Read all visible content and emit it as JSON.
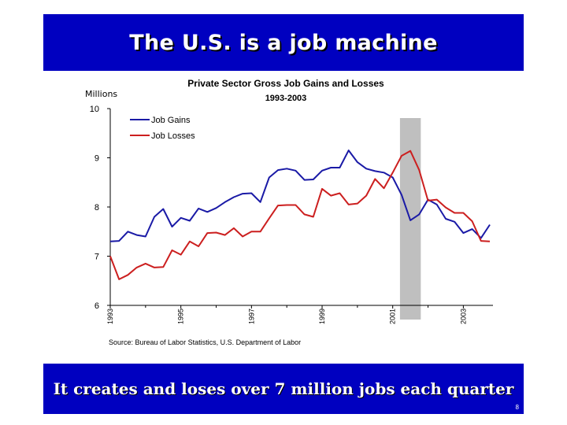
{
  "slide": {
    "title": "The U.S. is a job machine",
    "subtitle": "It creates and loses over 7 million jobs each quarter",
    "page_number": "8",
    "colors": {
      "banner": "#0000c0",
      "banner_text": "#ffffff"
    }
  },
  "chart_data": {
    "type": "line",
    "title": "Private Sector Gross Job Gains and Losses",
    "subtitle": "1993-2003",
    "ylabel": "Millions",
    "xlabel": "",
    "ylim": [
      6,
      10
    ],
    "yticks": [
      "10",
      "9",
      "8",
      "7",
      "6"
    ],
    "xtick_labels": [
      "1993",
      "1995",
      "1997",
      "1999",
      "2001",
      "2003"
    ],
    "quarters_start": "1993 Q1",
    "recession_shading": {
      "from_quarter_index": 33,
      "to_quarter_index": 35
    },
    "legend_position": "top-left",
    "source": "Source: Bureau of Labor Statistics, U.S. Department of Labor",
    "series": [
      {
        "name": "Job Gains",
        "color": "#1a1aa6",
        "values": [
          7.3,
          7.31,
          7.5,
          7.43,
          7.4,
          7.8,
          7.96,
          7.6,
          7.78,
          7.72,
          7.97,
          7.9,
          7.98,
          8.1,
          8.2,
          8.27,
          8.28,
          8.1,
          8.6,
          8.75,
          8.78,
          8.74,
          8.55,
          8.56,
          8.74,
          8.8,
          8.8,
          9.15,
          8.91,
          8.78,
          8.73,
          8.7,
          8.6,
          8.25,
          7.73,
          7.85,
          8.15,
          8.05,
          7.76,
          7.7,
          7.47,
          7.55,
          7.37,
          7.64
        ]
      },
      {
        "name": "Job Losses",
        "color": "#cc1f1f",
        "values": [
          7.0,
          6.53,
          6.62,
          6.77,
          6.85,
          6.77,
          6.78,
          7.12,
          7.03,
          7.3,
          7.2,
          7.47,
          7.48,
          7.43,
          7.57,
          7.4,
          7.5,
          7.5,
          7.77,
          8.03,
          8.04,
          8.04,
          7.85,
          7.8,
          8.37,
          8.23,
          8.28,
          8.05,
          8.07,
          8.23,
          8.57,
          8.38,
          8.7,
          9.04,
          9.14,
          8.75,
          8.13,
          8.15,
          7.99,
          7.88,
          7.88,
          7.71,
          7.31,
          7.3
        ]
      }
    ]
  }
}
